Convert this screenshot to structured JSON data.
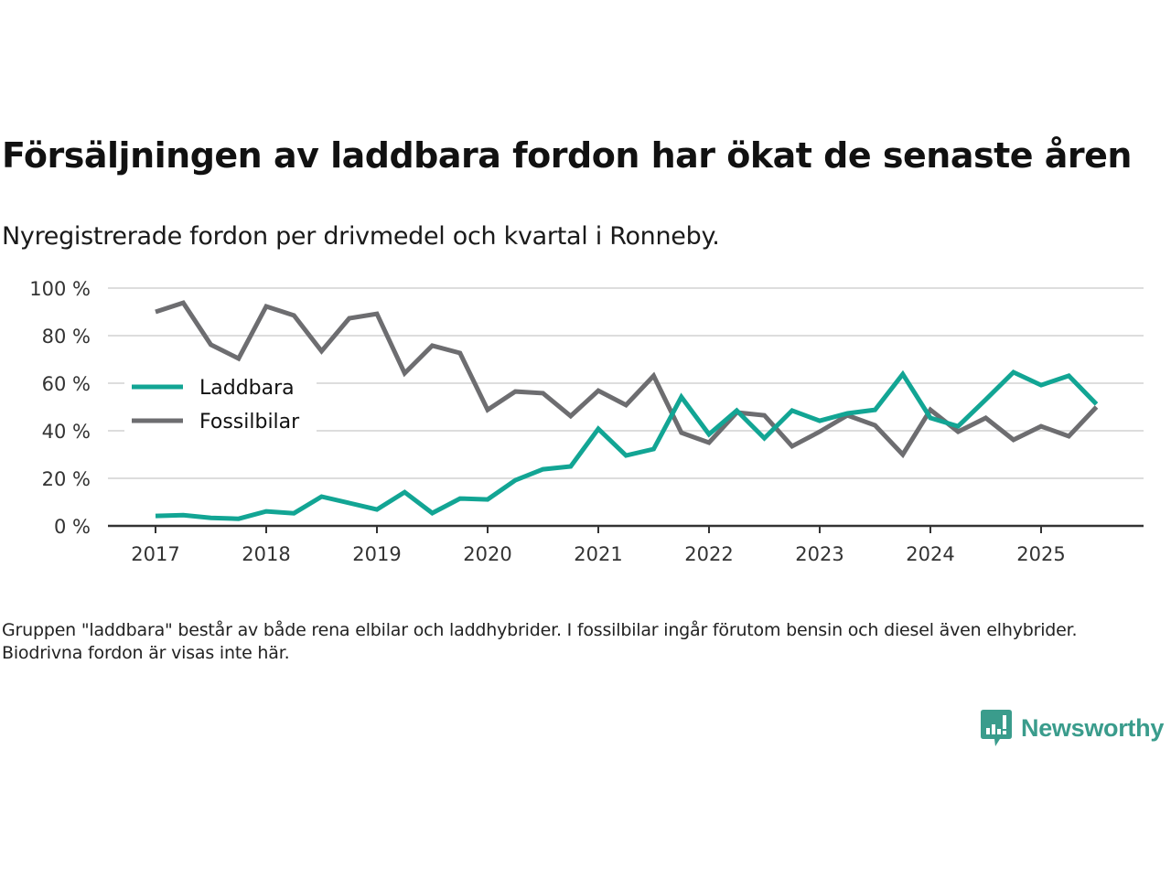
{
  "header": {
    "title": "Försäljningen av laddbara fordon har ökat de senaste åren",
    "subtitle": "Nyregistrerade fordon per drivmedel och kvartal i Ronneby."
  },
  "footnote": "Gruppen \"laddbara\" består av både rena elbilar och laddhybrider. I fossilbilar ingår förutom bensin och diesel även elhybrider. Biodrivna fordon är visas inte här.",
  "brand": {
    "name": "Newsworthy",
    "color": "#3a9c8c"
  },
  "chart_data": {
    "type": "line",
    "title": "Försäljningen av laddbara fordon har ökat de senaste åren",
    "subtitle": "Nyregistrerade fordon per drivmedel och kvartal i Ronneby.",
    "xlabel": "",
    "ylabel": "",
    "x_unit": "quarter",
    "x_start": "2017Q1",
    "xlim": [
      2016.6,
      2026.3
    ],
    "ylim": [
      0,
      100
    ],
    "yticks": [
      0,
      20,
      40,
      60,
      80,
      100
    ],
    "ytick_labels": [
      "0 %",
      "20 %",
      "40 %",
      "60 %",
      "80 %",
      "100 %"
    ],
    "xticks": [
      2017,
      2018,
      2019,
      2020,
      2021,
      2022,
      2023,
      2024,
      2025
    ],
    "xtick_labels": [
      "2017",
      "2018",
      "2019",
      "2020",
      "2021",
      "2022",
      "2023",
      "2024",
      "2025"
    ],
    "grid": true,
    "legend_position": "left-middle",
    "x": [
      "2017Q1",
      "2017Q2",
      "2017Q3",
      "2017Q4",
      "2018Q1",
      "2018Q2",
      "2018Q3",
      "2018Q4",
      "2019Q1",
      "2019Q2",
      "2019Q3",
      "2019Q4",
      "2020Q1",
      "2020Q2",
      "2020Q3",
      "2020Q4",
      "2021Q1",
      "2021Q2",
      "2021Q3",
      "2021Q4",
      "2022Q1",
      "2022Q2",
      "2022Q3",
      "2022Q4",
      "2023Q1",
      "2023Q2",
      "2023Q3",
      "2023Q4",
      "2024Q1",
      "2024Q2",
      "2024Q3",
      "2024Q4",
      "2025Q1",
      "2025Q2",
      "2025Q3"
    ],
    "series": [
      {
        "name": "Laddbara",
        "color": "#12a594",
        "values": [
          4.2,
          4.5,
          3.4,
          3.0,
          6.1,
          5.3,
          12.3,
          9.6,
          6.9,
          14.2,
          5.4,
          11.5,
          11.1,
          19.2,
          23.8,
          25.0,
          40.8,
          29.6,
          32.3,
          54.2,
          38.5,
          48.5,
          36.9,
          48.5,
          44.2,
          47.3,
          48.8,
          63.8,
          45.4,
          41.9,
          53.1,
          64.6,
          59.2,
          63.1,
          51.2
        ]
      },
      {
        "name": "Fossilbilar",
        "color": "#6d6d70",
        "values": [
          90.0,
          93.8,
          76.2,
          70.4,
          92.3,
          88.5,
          73.5,
          87.3,
          89.2,
          64.2,
          75.8,
          72.7,
          48.8,
          56.5,
          55.8,
          46.2,
          56.9,
          50.8,
          63.1,
          39.2,
          35.0,
          47.7,
          46.5,
          33.5,
          39.6,
          46.5,
          42.3,
          30.0,
          48.8,
          39.6,
          45.4,
          36.2,
          41.9,
          37.7,
          50.0
        ]
      }
    ]
  }
}
